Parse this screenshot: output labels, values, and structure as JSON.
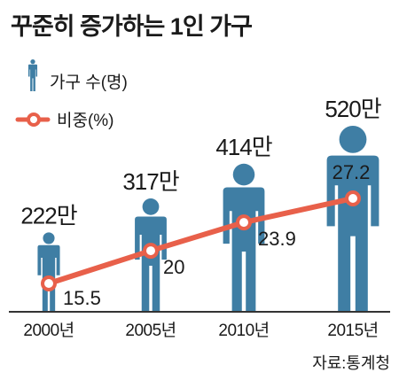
{
  "title": "꾸준히 증가하는 1인 가구",
  "legend": [
    {
      "label": "가구 수(명)",
      "icon": "person-icon"
    },
    {
      "label": "비중(%)",
      "icon": "line-marker-icon"
    }
  ],
  "source": "자료:통계청",
  "colors": {
    "person": "#3f7ea4",
    "line": "#e8604a",
    "marker_fill": "#ffffff",
    "axis": "#333333",
    "text": "#1a1a1a"
  },
  "chart_data": {
    "type": "bar",
    "categories": [
      "2000년",
      "2005년",
      "2010년",
      "2015년"
    ],
    "series": [
      {
        "name": "가구 수(명)",
        "kind": "pictogram",
        "values": [
          222,
          317,
          414,
          520
        ],
        "labels": [
          "222만",
          "317만",
          "414만",
          "520만"
        ]
      },
      {
        "name": "비중(%)",
        "kind": "line",
        "values": [
          15.5,
          20,
          23.9,
          27.2
        ],
        "labels": [
          "15.5",
          "20",
          "23.9",
          "27.2"
        ]
      }
    ],
    "title": "꾸준히 증가하는 1인 가구",
    "xlabel": "",
    "ylabel": "",
    "grid": false,
    "legend_position": "top-left"
  }
}
